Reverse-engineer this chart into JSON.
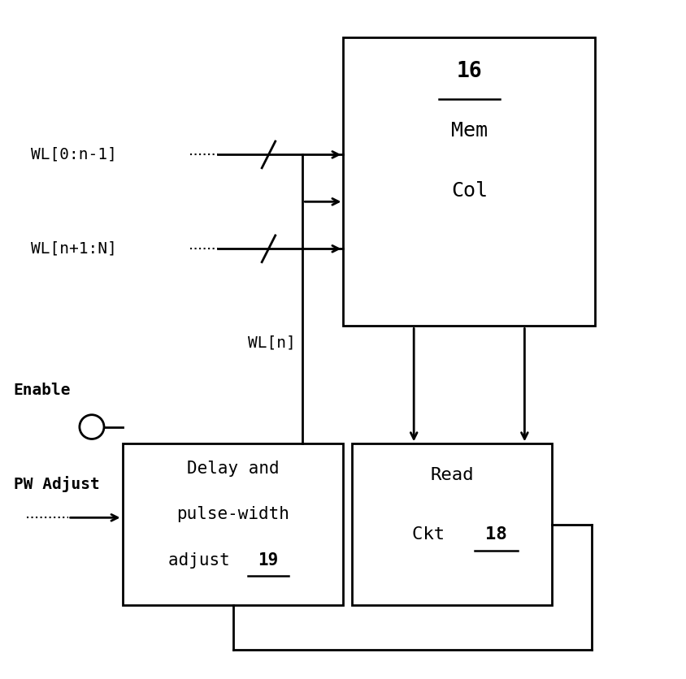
{
  "bg_color": "#ffffff",
  "line_color": "#000000",
  "fig_width": 8.45,
  "fig_height": 8.36,
  "dpi": 100,
  "mem_col_label_16": "16",
  "mem_col_label_mem": "Mem",
  "mem_col_label_col": "Col",
  "delay_label_line1": "Delay and",
  "delay_label_line2": "pulse-width",
  "delay_label_line3": "adjust ",
  "delay_label_num": "19",
  "read_ckt_label_line1": "Read",
  "read_ckt_label_line2": "Ckt  ",
  "read_ckt_label_num": "18",
  "wl0_label": "WL[0:n-1]",
  "wln1_label": "WL[n+1:N]",
  "wln_label": "WL[n]",
  "enable_label": "Enable",
  "pw_adjust_label": "PW Adjust"
}
